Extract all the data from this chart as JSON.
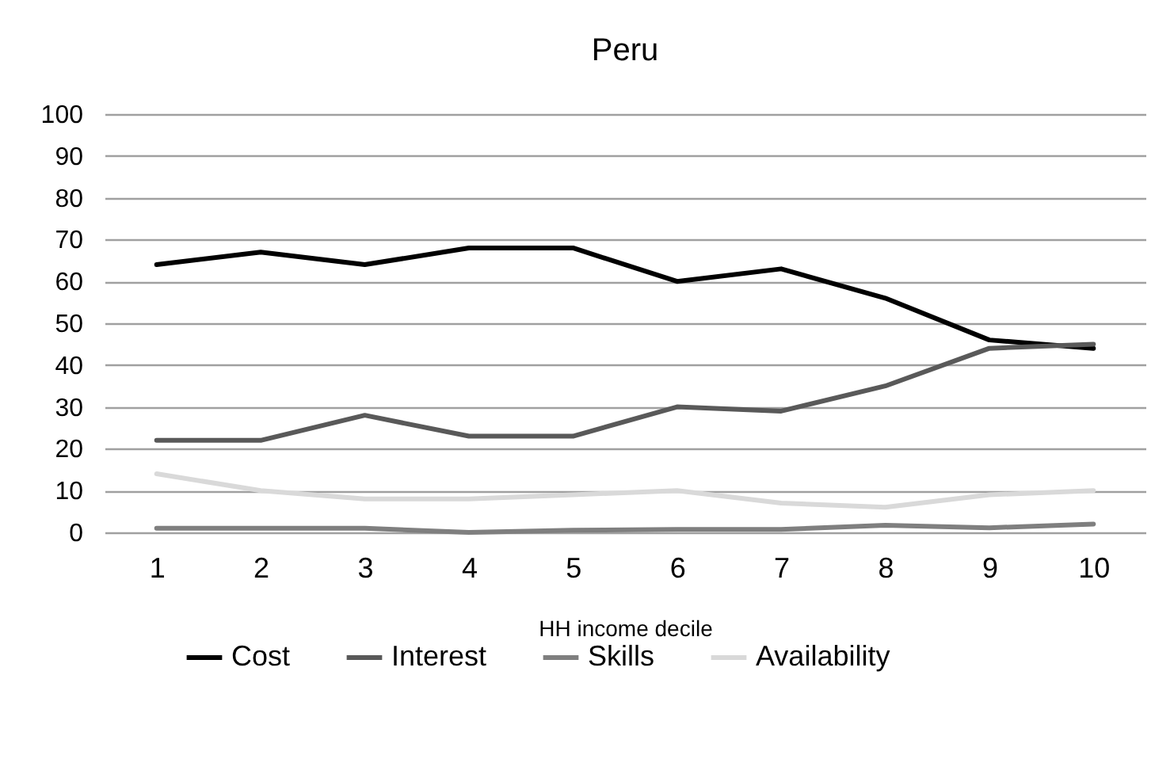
{
  "chart_data": {
    "type": "line",
    "title": "Peru",
    "xlabel": "HH income decile",
    "categories": [
      "1",
      "2",
      "3",
      "4",
      "5",
      "6",
      "7",
      "8",
      "9",
      "10"
    ],
    "series": [
      {
        "name": "Cost",
        "color": "#000000",
        "values": [
          64,
          67,
          64,
          68,
          68,
          60,
          63,
          56,
          46,
          44
        ]
      },
      {
        "name": "Interest",
        "color": "#595959",
        "values": [
          22,
          22,
          28,
          23,
          23,
          30,
          29,
          35,
          44,
          45
        ]
      },
      {
        "name": "Skills",
        "color": "#7f7f7f",
        "values": [
          1,
          1,
          1,
          0,
          0.5,
          0.7,
          0.7,
          1.7,
          1.1,
          2
        ]
      },
      {
        "name": "Availability",
        "color": "#d9d9d9",
        "values": [
          14,
          10,
          8,
          8,
          9,
          10,
          7,
          6,
          9,
          10
        ]
      }
    ],
    "ylim": [
      0,
      100
    ],
    "yticks": [
      0,
      10,
      20,
      30,
      40,
      50,
      60,
      70,
      80,
      90,
      100
    ],
    "grid": true,
    "legend": "bottom"
  }
}
